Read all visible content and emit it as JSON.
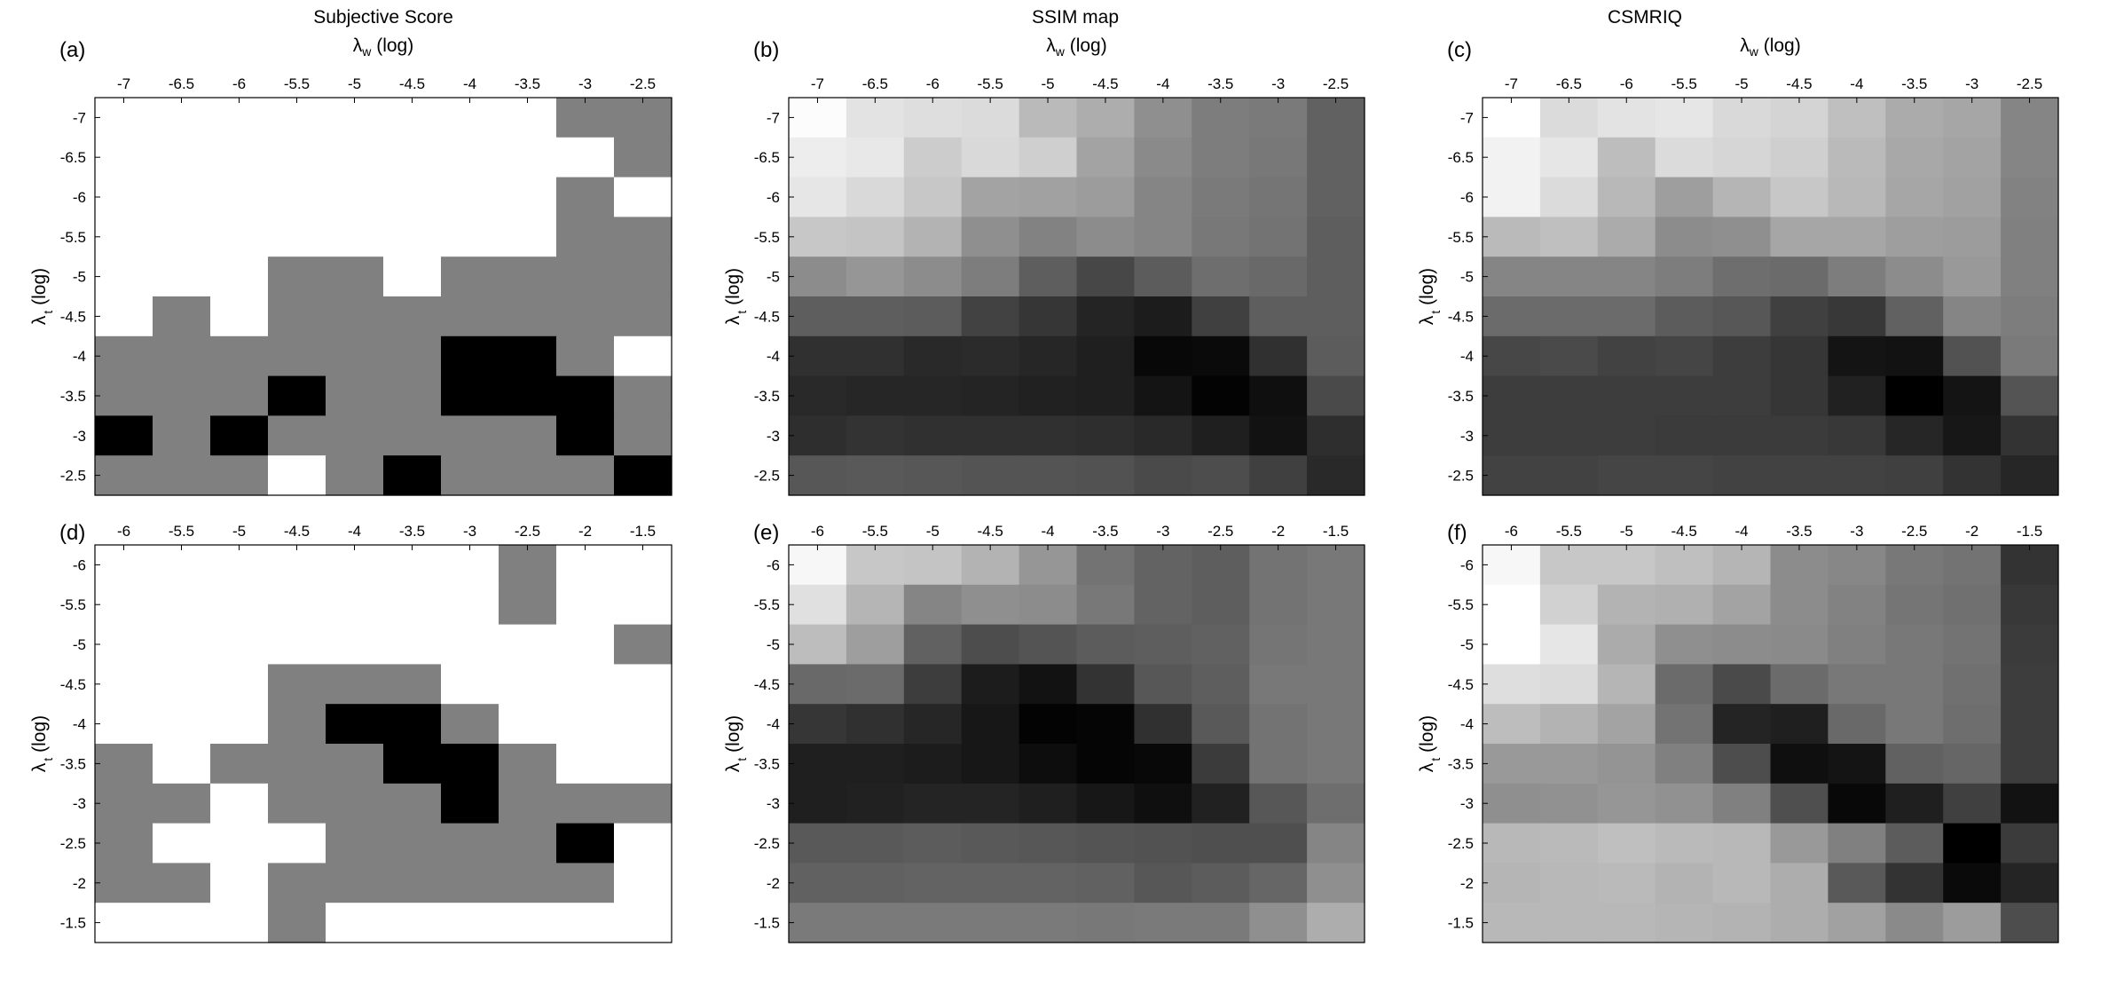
{
  "column_titles": [
    "Subjective Score",
    "SSIM map",
    "CSMRIQ"
  ],
  "axis_labels": {
    "x": {
      "symbol": "λ",
      "subscript": "w",
      "suffix": " (log)"
    },
    "y": {
      "symbol": "λ",
      "subscript": "t",
      "suffix": " (log)"
    }
  },
  "colors": {
    "background": "#ffffff",
    "frame": "#000000",
    "cell_scale": "grayscale, 0 = black, 1 = white"
  },
  "chart_data": [
    {
      "type": "heatmap",
      "panel": "(a)",
      "title": "Subjective Score",
      "x_ticks": [
        "-7",
        "-6.5",
        "-6",
        "-5.5",
        "-5",
        "-4.5",
        "-4",
        "-3.5",
        "-3",
        "-2.5"
      ],
      "y_ticks": [
        "-7",
        "-6.5",
        "-6",
        "-5.5",
        "-5",
        "-4.5",
        "-4",
        "-3.5",
        "-3",
        "-2.5"
      ],
      "values": [
        [
          1,
          1,
          1,
          1,
          1,
          1,
          1,
          1,
          0.5,
          0.5
        ],
        [
          1,
          1,
          1,
          1,
          1,
          1,
          1,
          1,
          1,
          0.5
        ],
        [
          1,
          1,
          1,
          1,
          1,
          1,
          1,
          1,
          0.5,
          1
        ],
        [
          1,
          1,
          1,
          1,
          1,
          1,
          1,
          1,
          0.5,
          0.5
        ],
        [
          1,
          1,
          1,
          0.5,
          0.5,
          1,
          0.5,
          0.5,
          0.5,
          0.5
        ],
        [
          1,
          0.5,
          1,
          0.5,
          0.5,
          0.5,
          0.5,
          0.5,
          0.5,
          0.5
        ],
        [
          0.5,
          0.5,
          0.5,
          0.5,
          0.5,
          0.5,
          0,
          0,
          0.5,
          1
        ],
        [
          0.5,
          0.5,
          0.5,
          0,
          0.5,
          0.5,
          0,
          0,
          0,
          0.5
        ],
        [
          0,
          0.5,
          0,
          0.5,
          0.5,
          0.5,
          0.5,
          0.5,
          0,
          0.5
        ],
        [
          0.5,
          0.5,
          0.5,
          1,
          0.5,
          0,
          0.5,
          0.5,
          0.5,
          0
        ]
      ]
    },
    {
      "type": "heatmap",
      "panel": "(b)",
      "title": "SSIM map",
      "x_ticks": [
        "-7",
        "-6.5",
        "-6",
        "-5.5",
        "-5",
        "-4.5",
        "-4",
        "-3.5",
        "-3",
        "-2.5"
      ],
      "y_ticks": [
        "-7",
        "-6.5",
        "-6",
        "-5.5",
        "-5",
        "-4.5",
        "-4",
        "-3.5",
        "-3",
        "-2.5"
      ],
      "values": [
        [
          0.99,
          0.89,
          0.87,
          0.86,
          0.73,
          0.68,
          0.56,
          0.49,
          0.48,
          0.38
        ],
        [
          0.93,
          0.91,
          0.8,
          0.85,
          0.81,
          0.64,
          0.54,
          0.49,
          0.47,
          0.38
        ],
        [
          0.9,
          0.85,
          0.78,
          0.64,
          0.63,
          0.61,
          0.52,
          0.48,
          0.46,
          0.38
        ],
        [
          0.78,
          0.77,
          0.7,
          0.56,
          0.51,
          0.55,
          0.52,
          0.47,
          0.45,
          0.37
        ],
        [
          0.55,
          0.59,
          0.55,
          0.49,
          0.37,
          0.28,
          0.36,
          0.43,
          0.41,
          0.37
        ],
        [
          0.37,
          0.37,
          0.36,
          0.26,
          0.21,
          0.14,
          0.11,
          0.25,
          0.37,
          0.37
        ],
        [
          0.19,
          0.19,
          0.16,
          0.17,
          0.15,
          0.12,
          0.03,
          0.04,
          0.19,
          0.36
        ],
        [
          0.16,
          0.15,
          0.15,
          0.14,
          0.13,
          0.12,
          0.08,
          0.01,
          0.06,
          0.29
        ],
        [
          0.18,
          0.2,
          0.19,
          0.19,
          0.19,
          0.18,
          0.16,
          0.12,
          0.07,
          0.18
        ],
        [
          0.34,
          0.35,
          0.34,
          0.33,
          0.33,
          0.32,
          0.29,
          0.3,
          0.25,
          0.16
        ]
      ]
    },
    {
      "type": "heatmap",
      "panel": "(c)",
      "title": "CSMRIQ",
      "x_ticks": [
        "-7",
        "-6.5",
        "-6",
        "-5.5",
        "-5",
        "-4.5",
        "-4",
        "-3.5",
        "-3",
        "-2.5"
      ],
      "y_ticks": [
        "-7",
        "-6.5",
        "-6",
        "-5.5",
        "-5",
        "-4.5",
        "-4",
        "-3.5",
        "-3",
        "-2.5"
      ],
      "values": [
        [
          1,
          0.86,
          0.89,
          0.9,
          0.85,
          0.83,
          0.75,
          0.67,
          0.65,
          0.52
        ],
        [
          0.95,
          0.9,
          0.74,
          0.86,
          0.84,
          0.81,
          0.73,
          0.66,
          0.64,
          0.52
        ],
        [
          0.95,
          0.86,
          0.72,
          0.62,
          0.71,
          0.78,
          0.72,
          0.65,
          0.63,
          0.51
        ],
        [
          0.73,
          0.75,
          0.67,
          0.55,
          0.56,
          0.65,
          0.65,
          0.62,
          0.61,
          0.5
        ],
        [
          0.52,
          0.52,
          0.52,
          0.49,
          0.43,
          0.42,
          0.49,
          0.55,
          0.6,
          0.5
        ],
        [
          0.42,
          0.42,
          0.42,
          0.36,
          0.34,
          0.25,
          0.22,
          0.38,
          0.52,
          0.49
        ],
        [
          0.28,
          0.29,
          0.26,
          0.27,
          0.24,
          0.21,
          0.08,
          0.07,
          0.32,
          0.48
        ],
        [
          0.24,
          0.24,
          0.24,
          0.24,
          0.24,
          0.21,
          0.13,
          0,
          0.08,
          0.33
        ],
        [
          0.24,
          0.24,
          0.24,
          0.23,
          0.23,
          0.23,
          0.22,
          0.15,
          0.09,
          0.2
        ],
        [
          0.26,
          0.26,
          0.27,
          0.27,
          0.26,
          0.26,
          0.26,
          0.25,
          0.2,
          0.15
        ]
      ]
    },
    {
      "type": "heatmap",
      "panel": "(d)",
      "title": "",
      "x_ticks": [
        "-6",
        "-5.5",
        "-5",
        "-4.5",
        "-4",
        "-3.5",
        "-3",
        "-2.5",
        "-2",
        "-1.5"
      ],
      "y_ticks": [
        "-6",
        "-5.5",
        "-5",
        "-4.5",
        "-4",
        "-3.5",
        "-3",
        "-2.5",
        "-2",
        "-1.5"
      ],
      "values": [
        [
          1,
          1,
          1,
          1,
          1,
          1,
          1,
          0.5,
          1,
          1
        ],
        [
          1,
          1,
          1,
          1,
          1,
          1,
          1,
          0.5,
          1,
          1
        ],
        [
          1,
          1,
          1,
          1,
          1,
          1,
          1,
          1,
          1,
          0.5
        ],
        [
          1,
          1,
          1,
          0.5,
          0.5,
          0.5,
          1,
          1,
          1,
          1
        ],
        [
          1,
          1,
          1,
          0.5,
          0,
          0,
          0.5,
          1,
          1,
          1
        ],
        [
          0.5,
          1,
          0.5,
          0.5,
          0.5,
          0,
          0,
          0.5,
          1,
          1
        ],
        [
          0.5,
          0.5,
          1,
          0.5,
          0.5,
          0.5,
          0,
          0.5,
          0.5,
          0.5
        ],
        [
          0.5,
          1,
          1,
          1,
          0.5,
          0.5,
          0.5,
          0.5,
          0,
          1
        ],
        [
          0.5,
          0.5,
          1,
          0.5,
          0.5,
          0.5,
          0.5,
          0.5,
          0.5,
          1
        ],
        [
          1,
          1,
          1,
          0.5,
          1,
          1,
          1,
          1,
          1,
          1
        ]
      ]
    },
    {
      "type": "heatmap",
      "panel": "(e)",
      "title": "",
      "x_ticks": [
        "-6",
        "-5.5",
        "-5",
        "-4.5",
        "-4",
        "-3.5",
        "-3",
        "-2.5",
        "-2",
        "-1.5"
      ],
      "y_ticks": [
        "-6",
        "-5.5",
        "-5",
        "-4.5",
        "-4",
        "-3.5",
        "-3",
        "-2.5",
        "-2",
        "-1.5"
      ],
      "values": [
        [
          0.97,
          0.78,
          0.77,
          0.7,
          0.59,
          0.45,
          0.39,
          0.37,
          0.45,
          0.47
        ],
        [
          0.88,
          0.71,
          0.52,
          0.56,
          0.55,
          0.47,
          0.39,
          0.37,
          0.45,
          0.47
        ],
        [
          0.74,
          0.62,
          0.38,
          0.3,
          0.33,
          0.36,
          0.37,
          0.38,
          0.46,
          0.47
        ],
        [
          0.41,
          0.42,
          0.24,
          0.11,
          0.07,
          0.2,
          0.34,
          0.37,
          0.47,
          0.47
        ],
        [
          0.21,
          0.19,
          0.15,
          0.09,
          0.01,
          0.02,
          0.19,
          0.35,
          0.45,
          0.47
        ],
        [
          0.12,
          0.12,
          0.11,
          0.09,
          0.05,
          0.02,
          0.03,
          0.23,
          0.45,
          0.47
        ],
        [
          0.12,
          0.13,
          0.14,
          0.14,
          0.12,
          0.09,
          0.06,
          0.13,
          0.34,
          0.43
        ],
        [
          0.35,
          0.35,
          0.36,
          0.35,
          0.34,
          0.33,
          0.32,
          0.31,
          0.31,
          0.52
        ],
        [
          0.38,
          0.38,
          0.39,
          0.39,
          0.39,
          0.38,
          0.34,
          0.36,
          0.4,
          0.56
        ],
        [
          0.48,
          0.48,
          0.48,
          0.48,
          0.48,
          0.47,
          0.48,
          0.48,
          0.56,
          0.68
        ]
      ]
    },
    {
      "type": "heatmap",
      "panel": "(f)",
      "title": "",
      "x_ticks": [
        "-6",
        "-5.5",
        "-5",
        "-4.5",
        "-4",
        "-3.5",
        "-3",
        "-2.5",
        "-2",
        "-1.5"
      ],
      "y_ticks": [
        "-6",
        "-5.5",
        "-5",
        "-4.5",
        "-4",
        "-3.5",
        "-3",
        "-2.5",
        "-2",
        "-1.5"
      ],
      "values": [
        [
          0.97,
          0.78,
          0.78,
          0.75,
          0.71,
          0.55,
          0.53,
          0.47,
          0.45,
          0.2
        ],
        [
          1,
          0.82,
          0.7,
          0.69,
          0.64,
          0.55,
          0.51,
          0.46,
          0.44,
          0.22
        ],
        [
          1,
          0.9,
          0.67,
          0.56,
          0.55,
          0.54,
          0.5,
          0.47,
          0.45,
          0.23
        ],
        [
          0.87,
          0.86,
          0.71,
          0.42,
          0.29,
          0.42,
          0.47,
          0.47,
          0.44,
          0.24
        ],
        [
          0.74,
          0.7,
          0.64,
          0.45,
          0.14,
          0.12,
          0.41,
          0.47,
          0.43,
          0.24
        ],
        [
          0.6,
          0.6,
          0.58,
          0.5,
          0.3,
          0.06,
          0.08,
          0.38,
          0.4,
          0.24
        ],
        [
          0.56,
          0.57,
          0.59,
          0.57,
          0.5,
          0.31,
          0.03,
          0.12,
          0.25,
          0.07
        ],
        [
          0.72,
          0.73,
          0.75,
          0.73,
          0.72,
          0.6,
          0.5,
          0.36,
          0,
          0.23
        ],
        [
          0.71,
          0.72,
          0.73,
          0.7,
          0.72,
          0.68,
          0.35,
          0.2,
          0.04,
          0.14
        ],
        [
          0.72,
          0.72,
          0.72,
          0.71,
          0.7,
          0.68,
          0.63,
          0.54,
          0.61,
          0.3
        ]
      ]
    }
  ]
}
